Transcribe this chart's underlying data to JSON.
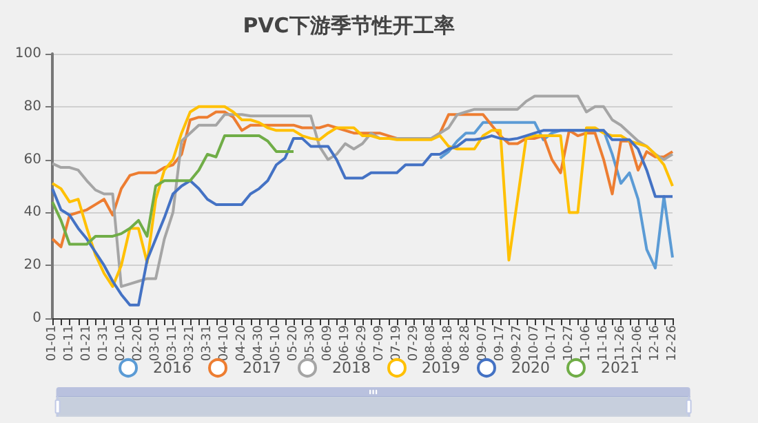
{
  "chart_data": {
    "type": "line",
    "title": "PVC下游季节性开工率",
    "categories": [
      "01-01",
      null,
      "01-11",
      null,
      "01-21",
      null,
      "01-31",
      null,
      "02-10",
      null,
      "02-20",
      null,
      "03-01",
      null,
      "03-11",
      null,
      "03-21",
      null,
      "03-31",
      null,
      "04-10",
      null,
      "04-20",
      null,
      "04-30",
      null,
      "05-10",
      null,
      "05-20",
      null,
      "05-30",
      null,
      "06-09",
      null,
      "06-19",
      null,
      "06-29",
      null,
      "07-09",
      null,
      "07-19",
      null,
      "07-29",
      null,
      "08-08",
      null,
      "08-18",
      null,
      "08-28",
      null,
      "09-07",
      null,
      "09-17",
      null,
      "09-27",
      null,
      "10-07",
      null,
      "10-17",
      null,
      "10-27",
      null,
      "11-06",
      null,
      "11-16",
      null,
      "11-26",
      null,
      "12-06",
      null,
      "12-16",
      null,
      "12-26"
    ],
    "series": [
      {
        "name": "2016",
        "color": "#5b9bd5",
        "values": [
          null,
          null,
          null,
          null,
          null,
          null,
          null,
          null,
          null,
          null,
          null,
          null,
          null,
          null,
          null,
          null,
          null,
          null,
          null,
          null,
          null,
          null,
          null,
          null,
          null,
          null,
          null,
          null,
          null,
          null,
          null,
          null,
          null,
          null,
          null,
          null,
          null,
          null,
          null,
          null,
          null,
          null,
          null,
          null,
          null,
          60.5,
          63,
          67,
          70,
          70,
          74,
          74,
          74,
          74,
          74,
          74,
          74,
          67.5,
          70,
          71,
          71,
          71,
          71,
          71,
          71,
          62,
          51,
          55,
          45,
          26,
          19,
          46,
          23
        ]
      },
      {
        "name": "2017",
        "color": "#ed7d31",
        "values": [
          30,
          27,
          39,
          40,
          41,
          43,
          45,
          39,
          49,
          54,
          55,
          55,
          55,
          57,
          58,
          62,
          75,
          76,
          76,
          78,
          78,
          76,
          71,
          73,
          73,
          73,
          73,
          73,
          73,
          72,
          72,
          72,
          73,
          72,
          71,
          70,
          70,
          70,
          70,
          69,
          68,
          68,
          68,
          68,
          68,
          70,
          77,
          77,
          77,
          77,
          77,
          73,
          69,
          66,
          66,
          68,
          68,
          69,
          60,
          55,
          71,
          69,
          70,
          70,
          60,
          47,
          67,
          67,
          56,
          63,
          61,
          61,
          63
        ]
      },
      {
        "name": "2018",
        "color": "#a5a5a5",
        "values": [
          58.5,
          57,
          57,
          56,
          52,
          48.5,
          47,
          47,
          12,
          13,
          14,
          15,
          15,
          30,
          40,
          67,
          70,
          73,
          73,
          73,
          77,
          77,
          77,
          76.5,
          76.5,
          76.5,
          76.5,
          76.5,
          76.5,
          76.5,
          76.5,
          65,
          60,
          62,
          66,
          64,
          66,
          70,
          68,
          68,
          68,
          68,
          68,
          68,
          68,
          70,
          72,
          77,
          78,
          79,
          79,
          79,
          79,
          79,
          79,
          82,
          84,
          84,
          84,
          84,
          84,
          84,
          78,
          80,
          80,
          75,
          73,
          70,
          67,
          65,
          62,
          60,
          62
        ]
      },
      {
        "name": "2019",
        "color": "#ffc000",
        "values": [
          51,
          49,
          44,
          45,
          34,
          24,
          17,
          12,
          20,
          34,
          34,
          21,
          45,
          56,
          60,
          70,
          78,
          80,
          80,
          80,
          80,
          78,
          75,
          75,
          74,
          72,
          71,
          71,
          71,
          69,
          68,
          67.5,
          70,
          72,
          72,
          72,
          69,
          69,
          68,
          68,
          67.5,
          67.5,
          67.5,
          67.5,
          67.5,
          69,
          65,
          64,
          64,
          64,
          69,
          71,
          71,
          22,
          45,
          68,
          69,
          69,
          69,
          69,
          40,
          40,
          72,
          72,
          70,
          69,
          69,
          67,
          66,
          65,
          62,
          58,
          50
        ]
      },
      {
        "name": "2020",
        "color": "#4472c4",
        "values": [
          49,
          41,
          39,
          34,
          30,
          25,
          20,
          14,
          9,
          5,
          5,
          22,
          30,
          38,
          47,
          50,
          52,
          49,
          45,
          43,
          43,
          43,
          43,
          47,
          49,
          52,
          58,
          60.5,
          68,
          68,
          65,
          65,
          65,
          60,
          53,
          53,
          53,
          55,
          55,
          55,
          55,
          58,
          58,
          58,
          62,
          62,
          64,
          65,
          67.5,
          67.5,
          68,
          69,
          68,
          67.5,
          68,
          69,
          70,
          71,
          71,
          71,
          71,
          71,
          71,
          71,
          71,
          67.5,
          67.5,
          67.5,
          64,
          56,
          46,
          46,
          46
        ]
      },
      {
        "name": "2021",
        "color": "#70ad47",
        "values": [
          44,
          37,
          28,
          28,
          28,
          31,
          31,
          31,
          32,
          34,
          37,
          31,
          50,
          52,
          52,
          52,
          52,
          56,
          62,
          61,
          69,
          69,
          69,
          69,
          69,
          67,
          63,
          63,
          63,
          null,
          null,
          null,
          null,
          null,
          null,
          null,
          null,
          null,
          null,
          null,
          null,
          null,
          null,
          null,
          null,
          null,
          null,
          null,
          null,
          null,
          null,
          null,
          null,
          null,
          null,
          null,
          null,
          null,
          null,
          null,
          null,
          null,
          null,
          null,
          null,
          null,
          null,
          null,
          null,
          null,
          null,
          null,
          null
        ]
      }
    ],
    "ylim": [
      0,
      100
    ],
    "yticks": [
      0,
      20,
      40,
      60,
      80,
      100
    ],
    "grid": "y",
    "legend": "bottom"
  }
}
